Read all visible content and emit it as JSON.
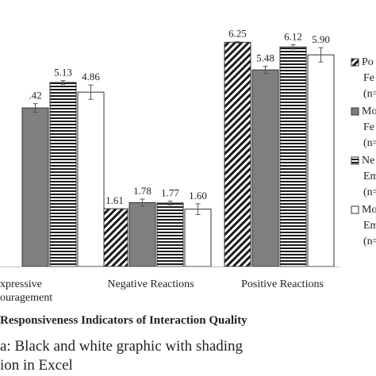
{
  "chart_data": {
    "type": "bar",
    "title": "",
    "xlabel_parts": [
      "Responsiveness",
      "Indicators of Interaction Quality"
    ],
    "ylabel": "",
    "ylim": [
      0,
      6.5
    ],
    "grid": false,
    "legend_position": "right",
    "categories": [
      {
        "lines": [
          "xpressive",
          "ouragement"
        ]
      },
      {
        "lines": [
          "Negative Reactions"
        ]
      },
      {
        "lines": [
          "Positive Reactions"
        ]
      }
    ],
    "series": [
      {
        "name": "Po Fe (n",
        "legend_lines": [
          "Po",
          "Fe",
          "(n="
        ],
        "pattern": "diagonal",
        "values": [
          null,
          1.61,
          6.25
        ],
        "errors": [
          null,
          0.0,
          0.02
        ],
        "labels": [
          "",
          "1.61",
          "6.25"
        ]
      },
      {
        "name": "Mo Fe (n",
        "legend_lines": [
          "Mo",
          "Fe",
          "(n="
        ],
        "pattern": "solid-gray",
        "values": [
          4.42,
          1.78,
          5.48
        ],
        "errors": [
          0.12,
          0.1,
          0.1
        ],
        "labels": ".42|1.78|5.48"
      },
      {
        "name": "Ne Em (n",
        "legend_lines": [
          "Ne",
          "Em",
          "(n="
        ],
        "pattern": "horizontal",
        "values": [
          5.13,
          1.77,
          6.12
        ],
        "errors": [
          0.05,
          0.05,
          0.06
        ],
        "labels": [
          "5.13",
          "1.77",
          "6.12"
        ]
      },
      {
        "name": "Mo Em (n",
        "legend_lines": [
          "Mo",
          "Em",
          "(n="
        ],
        "pattern": "white",
        "values": [
          4.86,
          1.6,
          5.9
        ],
        "errors": [
          0.2,
          0.15,
          0.2
        ],
        "labels": [
          "4.86",
          "1.60",
          "5.90"
        ]
      }
    ],
    "colors": {
      "gray": "#7f7f7f",
      "edge": "#333333",
      "axis": "#bfbfbf"
    }
  },
  "captions": [
    "a: Black and white graphic with shading",
    "ion in Excel"
  ]
}
